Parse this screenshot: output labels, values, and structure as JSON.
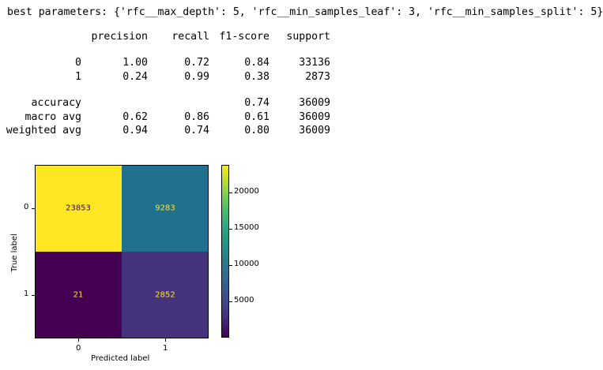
{
  "best_params_line": "best parameters: {'rfc__max_depth': 5, 'rfc__min_samples_leaf': 3, 'rfc__min_samples_split': 5}",
  "report": {
    "headers": [
      "precision",
      "recall",
      "f1-score",
      "support"
    ],
    "rows": [
      {
        "label": "0",
        "precision": "1.00",
        "recall": "0.72",
        "f1": "0.84",
        "support": "33136"
      },
      {
        "label": "1",
        "precision": "0.24",
        "recall": "0.99",
        "f1": "0.38",
        "support": "2873"
      },
      {
        "label": "accuracy",
        "precision": "",
        "recall": "",
        "f1": "0.74",
        "support": "36009"
      },
      {
        "label": "macro avg",
        "precision": "0.62",
        "recall": "0.86",
        "f1": "0.61",
        "support": "36009"
      },
      {
        "label": "weighted avg",
        "precision": "0.94",
        "recall": "0.74",
        "f1": "0.80",
        "support": "36009"
      }
    ]
  },
  "confusion_matrix": {
    "xlabel": "Predicted label",
    "ylabel": "True label",
    "xticks": [
      "0",
      "1"
    ],
    "yticks": [
      "0",
      "1"
    ],
    "values": [
      [
        23853,
        9283
      ],
      [
        21,
        2852
      ]
    ],
    "cell_colors": [
      [
        "#fde725",
        "#21718e"
      ],
      [
        "#440154",
        "#45337d"
      ]
    ],
    "text_colors": [
      [
        "#440154",
        "#fde725"
      ],
      [
        "#fde725",
        "#fde725"
      ]
    ],
    "colorbar_ticks": [
      "20000",
      "15000",
      "10000",
      "5000"
    ],
    "colorbar_range": [
      21,
      23853
    ]
  }
}
